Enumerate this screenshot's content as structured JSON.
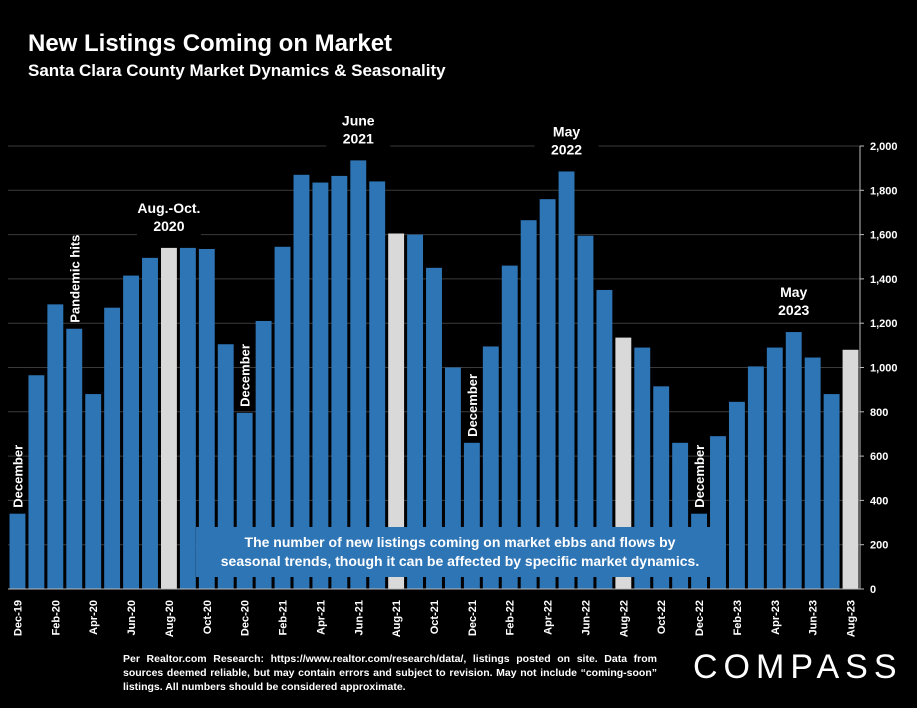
{
  "header": {
    "title": "New Listings Coming on Market",
    "subtitle": "Santa Clara County Market Dynamics & Seasonality"
  },
  "callout": {
    "line1": "The number of new listings coming on market ebbs and flows by",
    "line2": "seasonal trends, though it can be affected by specific market dynamics."
  },
  "footnote": {
    "text": "Per Realtor.com Research: https://www.realtor.com/research/data/, listings posted on site. Data from sources deemed reliable, but may contain errors and subject to revision. May not include “coming-soon” listings. All numbers should be considered approximate."
  },
  "logo": {
    "text": "COMPASS"
  },
  "colors": {
    "bar": "#2E75B6",
    "highlight": "#D9D9D9",
    "background": "#000000",
    "text": "#FFFFFF",
    "grid": "#3A3A3A"
  },
  "chart_data": {
    "type": "bar",
    "title": "New Listings Coming on Market",
    "subtitle": "Santa Clara County Market Dynamics & Seasonality",
    "ylim": [
      0,
      2000
    ],
    "yticks": [
      "0",
      "200",
      "400",
      "600",
      "800",
      "1,000",
      "1,200",
      "1,400",
      "1,600",
      "1,800",
      "2,000"
    ],
    "y_axis_position": "right",
    "grid": true,
    "categories": [
      "Dec-19",
      "Jan-20",
      "Feb-20",
      "Mar-20",
      "Apr-20",
      "May-20",
      "Jun-20",
      "Jul-20",
      "Aug-20",
      "Sep-20",
      "Oct-20",
      "Nov-20",
      "Dec-20",
      "Jan-21",
      "Feb-21",
      "Mar-21",
      "Apr-21",
      "May-21",
      "Jun-21",
      "Jul-21",
      "Aug-21",
      "Sep-21",
      "Oct-21",
      "Nov-21",
      "Dec-21",
      "Jan-22",
      "Feb-22",
      "Mar-22",
      "Apr-22",
      "May-22",
      "Jun-22",
      "Jul-22",
      "Aug-22",
      "Sep-22",
      "Oct-22",
      "Nov-22",
      "Dec-22",
      "Jan-23",
      "Feb-23",
      "Mar-23",
      "Apr-23",
      "May-23",
      "Jun-23",
      "Jul-23",
      "Aug-23"
    ],
    "xtick_labels": [
      "Dec-19",
      "",
      "Feb-20",
      "",
      "Apr-20",
      "",
      "Jun-20",
      "",
      "Aug-20",
      "",
      "Oct-20",
      "",
      "Dec-20",
      "",
      "Feb-21",
      "",
      "Apr-21",
      "",
      "Jun-21",
      "",
      "Aug-21",
      "",
      "Oct-21",
      "",
      "Dec-21",
      "",
      "Feb-22",
      "",
      "Apr-22",
      "",
      "Jun-22",
      "",
      "Aug-22",
      "",
      "Oct-22",
      "",
      "Dec-22",
      "",
      "Feb-23",
      "",
      "Apr-23",
      "",
      "Jun-23",
      "",
      "Aug-23"
    ],
    "values": [
      340,
      965,
      1285,
      1175,
      880,
      1270,
      1415,
      1495,
      1540,
      1540,
      1535,
      1105,
      795,
      1210,
      1545,
      1870,
      1835,
      1865,
      1935,
      1840,
      1605,
      1600,
      1450,
      1000,
      660,
      1095,
      1460,
      1665,
      1760,
      1885,
      1595,
      1350,
      1135,
      1090,
      915,
      660,
      340,
      690,
      845,
      1005,
      1090,
      1160,
      1045,
      880,
      1080
    ],
    "highlight_categories": [
      "Aug-20",
      "Aug-21",
      "Aug-22",
      "Aug-23"
    ],
    "annotations": [
      {
        "category": "Dec-19",
        "text": "December",
        "style": "vertical"
      },
      {
        "category": "Mar-20",
        "text": "Pandemic hits",
        "style": "vertical"
      },
      {
        "category": "Aug-20",
        "text": "Aug.-Oct. 2020",
        "lines": [
          "Aug.-Oct.",
          "2020"
        ],
        "style": "horizontal"
      },
      {
        "category": "Dec-20",
        "text": "December",
        "style": "vertical"
      },
      {
        "category": "Jun-21",
        "text": "June 2021",
        "lines": [
          "June",
          "2021"
        ],
        "style": "horizontal"
      },
      {
        "category": "Dec-21",
        "text": "December",
        "style": "vertical"
      },
      {
        "category": "May-22",
        "text": "May 2022",
        "lines": [
          "May",
          "2022"
        ],
        "style": "horizontal"
      },
      {
        "category": "Dec-22",
        "text": "December",
        "style": "vertical"
      },
      {
        "category": "May-23",
        "text": "May 2023",
        "lines": [
          "May",
          "2023"
        ],
        "style": "horizontal"
      }
    ]
  }
}
